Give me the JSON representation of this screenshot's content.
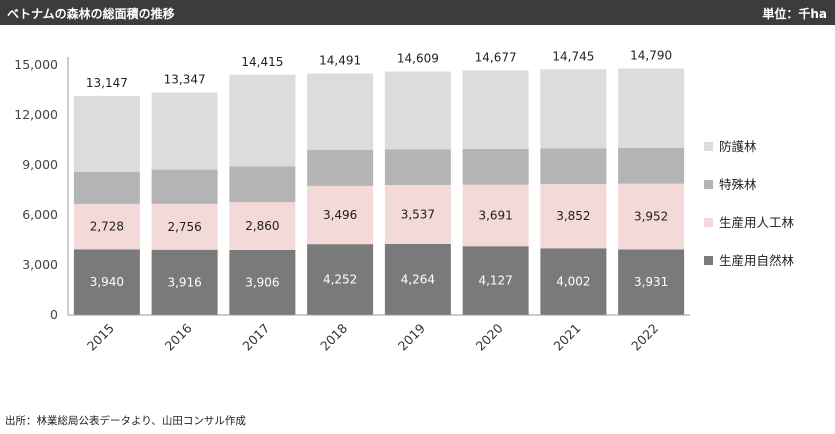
{
  "header": {
    "title": "ベトナムの森林の総面積の推移",
    "unit": "単位：千ha"
  },
  "source": "出所：林業総局公表データより、山田コンサル作成",
  "colors": {
    "header_bg": "#3c3c3c",
    "natural_forest": "#7a7a7a",
    "planted_forest": "#f3d9d7",
    "special_use": "#b4b4b4",
    "protection": "#dcdcdc"
  },
  "chart_data": {
    "type": "bar",
    "stacked": true,
    "categories": [
      "2015",
      "2016",
      "2017",
      "2018",
      "2019",
      "2020",
      "2021",
      "2022"
    ],
    "series": [
      {
        "name": "生産用自然林",
        "values": [
          3940,
          3916,
          3906,
          4252,
          4264,
          4127,
          4002,
          3931
        ],
        "labels": [
          "3,940",
          "3,916",
          "3,906",
          "4,252",
          "4,264",
          "4,127",
          "4,002",
          "3,931"
        ],
        "color": "#7a7a7a",
        "label_color": "#ffffff"
      },
      {
        "name": "生産用人工林",
        "values": [
          2728,
          2756,
          2860,
          3496,
          3537,
          3691,
          3852,
          3952
        ],
        "labels": [
          "2,728",
          "2,756",
          "2,860",
          "3,496",
          "3,537",
          "3,691",
          "3,852",
          "3,952"
        ],
        "color": "#f3d9d7",
        "label_color": "#222222"
      },
      {
        "name": "特殊林",
        "values": [
          1930,
          2050,
          2150,
          2150,
          2150,
          2150,
          2150,
          2150
        ],
        "labels": null,
        "color": "#b4b4b4",
        "label_color": null
      },
      {
        "name": "防護林",
        "values": [
          4549,
          4625,
          5499,
          4593,
          4658,
          4709,
          4741,
          4757
        ],
        "labels": null,
        "color": "#dcdcdc",
        "label_color": null
      }
    ],
    "totals": [
      13147,
      13347,
      14415,
      14491,
      14609,
      14677,
      14745,
      14790
    ],
    "total_labels": [
      "13,147",
      "13,347",
      "14,415",
      "14,491",
      "14,609",
      "14,677",
      "14,745",
      "14,790"
    ],
    "yticks": [
      0,
      3000,
      6000,
      9000,
      12000,
      15000
    ],
    "ytick_labels": [
      "0",
      "3,000",
      "6,000",
      "9,000",
      "12,000",
      "15,000"
    ],
    "ylim": [
      0,
      15000
    ],
    "legend_order": [
      "防護林",
      "特殊林",
      "生産用人工林",
      "生産用自然林"
    ],
    "legend_position": "right",
    "grid": false
  }
}
